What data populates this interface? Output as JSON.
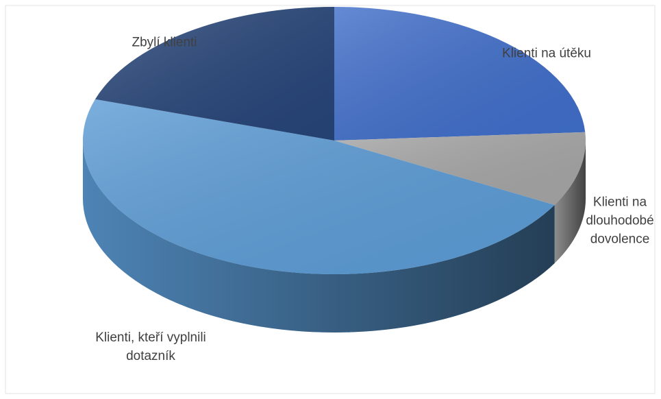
{
  "chart_data": {
    "type": "pie",
    "three_d": true,
    "categories": [
      "Klienti na útěku",
      "Klienti na dlouhodobé dovolence",
      "Klienti, kteří vyplnili dotazník",
      "Zbylí klienti"
    ],
    "values": [
      24,
      9,
      47,
      20
    ],
    "colors": [
      "#3f6dc9",
      "#a5a5a5",
      "#5b9bd5",
      "#264478"
    ]
  }
}
